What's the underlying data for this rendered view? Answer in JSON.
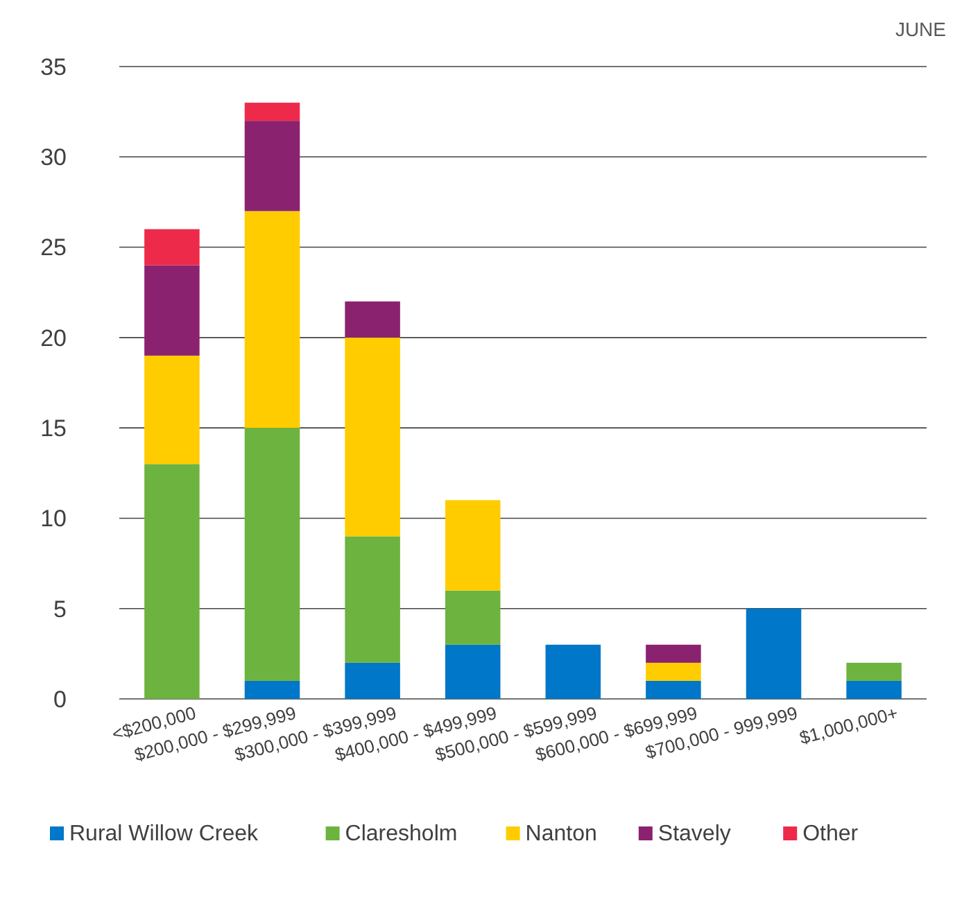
{
  "chart_data": {
    "type": "bar",
    "subtitle": "JUNE",
    "stacked": true,
    "categories": [
      "<$200,000",
      "$200,000 - $299,999",
      "$300,000 - $399,999",
      "$400,000 - $499,999",
      "$500,000 - $599,999",
      "$600,000 - $699,999",
      "$700,000 - 999,999",
      "$1,000,000+"
    ],
    "series": [
      {
        "name": "Rural Willow Creek",
        "color": "#0077c8",
        "values": [
          0,
          1,
          2,
          3,
          3,
          1,
          5,
          1
        ]
      },
      {
        "name": "Claresholm",
        "color": "#6db33f",
        "values": [
          13,
          14,
          7,
          3,
          0,
          0,
          0,
          1
        ]
      },
      {
        "name": "Nanton",
        "color": "#ffcc00",
        "values": [
          6,
          12,
          11,
          5,
          0,
          1,
          0,
          0
        ]
      },
      {
        "name": "Stavely",
        "color": "#8b2270",
        "values": [
          5,
          5,
          2,
          0,
          0,
          1,
          0,
          0
        ]
      },
      {
        "name": "Other",
        "color": "#ee2a4a",
        "values": [
          2,
          1,
          0,
          0,
          0,
          0,
          0,
          0
        ]
      }
    ],
    "ylim": [
      0,
      35
    ],
    "yticks": [
      0,
      5,
      10,
      15,
      20,
      25,
      30,
      35
    ],
    "grid": "y",
    "legend": "bottom"
  }
}
